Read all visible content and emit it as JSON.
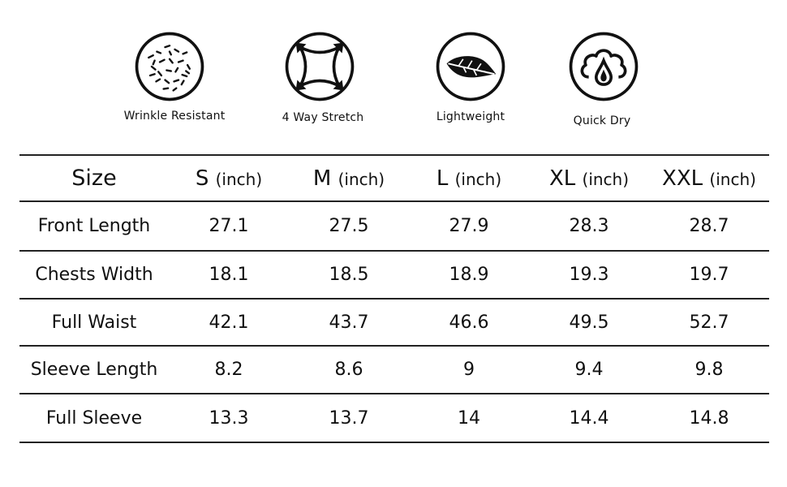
{
  "features": [
    {
      "label": "Wrinkle Resistant",
      "icon": "wrinkle-resistant-icon"
    },
    {
      "label": "4 Way Stretch",
      "icon": "four-way-stretch-icon"
    },
    {
      "label": "Lightweight",
      "icon": "lightweight-leaf-icon"
    },
    {
      "label": "Quick Dry",
      "icon": "quick-dry-icon"
    }
  ],
  "table": {
    "corner": "Size",
    "columns": [
      {
        "size": "S",
        "unit": "(inch)"
      },
      {
        "size": "M",
        "unit": "(inch)"
      },
      {
        "size": "L",
        "unit": "(inch)"
      },
      {
        "size": "XL",
        "unit": "(inch)"
      },
      {
        "size": "XXL",
        "unit": "(inch)"
      }
    ],
    "rows": [
      {
        "name": "Front Length",
        "values": [
          "27.1",
          "27.5",
          "27.9",
          "28.3",
          "28.7"
        ]
      },
      {
        "name": "Chests Width",
        "values": [
          "18.1",
          "18.5",
          "18.9",
          "19.3",
          "19.7"
        ]
      },
      {
        "name": "Full Waist",
        "values": [
          "42.1",
          "43.7",
          "46.6",
          "49.5",
          "52.7"
        ]
      },
      {
        "name": "Sleeve Length",
        "values": [
          "8.2",
          "8.6",
          "9",
          "9.4",
          "9.8"
        ]
      },
      {
        "name": "Full Sleeve",
        "values": [
          "13.3",
          "13.7",
          "14",
          "14.4",
          "14.8"
        ]
      }
    ]
  },
  "colors": {
    "text": "#111111",
    "rule": "#222222",
    "background": "#ffffff"
  }
}
